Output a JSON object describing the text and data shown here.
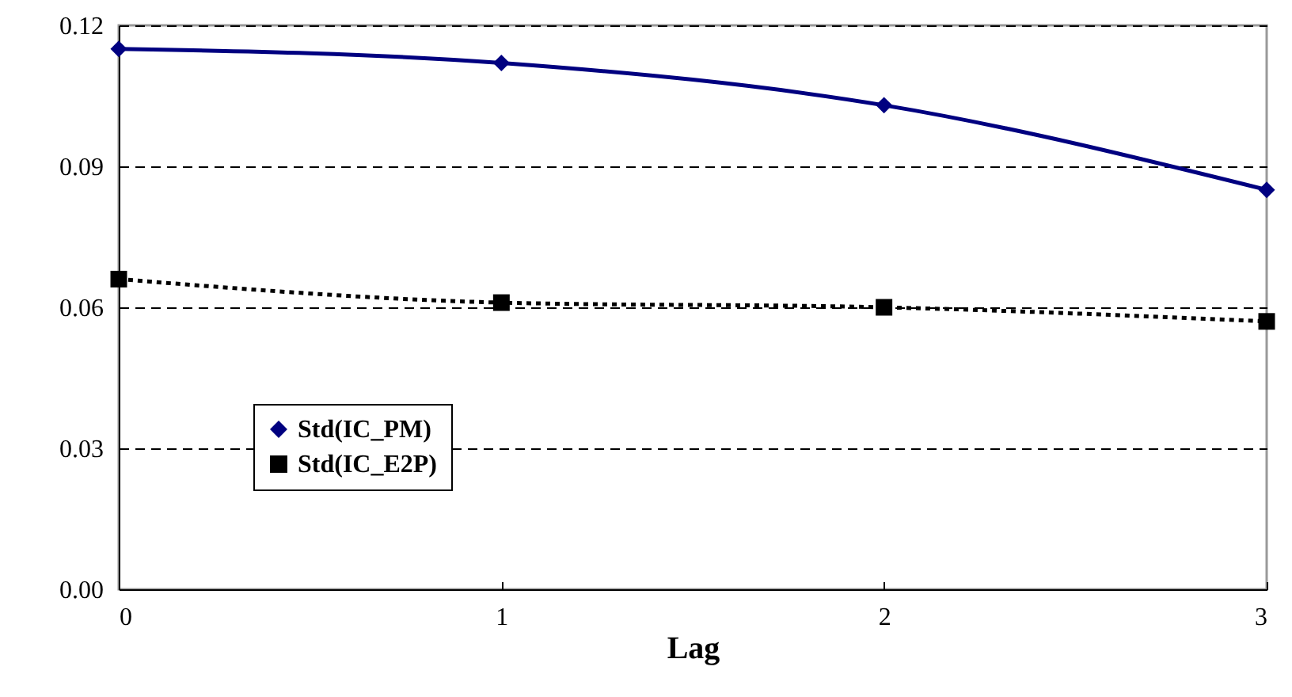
{
  "chart_data": {
    "type": "line",
    "xlabel": "Lag",
    "x": [
      0,
      1,
      2,
      3
    ],
    "series": [
      {
        "name": "Std(IC_PM)",
        "color": "#000080",
        "values": [
          0.115,
          0.112,
          0.103,
          0.085
        ],
        "marker": "diamond",
        "line_style": "solid"
      },
      {
        "name": "Std(IC_E2P)",
        "color": "#000000",
        "values": [
          0.066,
          0.061,
          0.06,
          0.057
        ],
        "marker": "square",
        "line_style": "dotted"
      }
    ],
    "xlim": [
      0,
      3
    ],
    "xticks": [
      0,
      1,
      2,
      3
    ],
    "ylim": [
      0,
      0.12
    ],
    "yticks": [
      {
        "value": 0,
        "label": "0.00"
      },
      0.03,
      0.06,
      0.09,
      0.12
    ],
    "grid": "y",
    "legend": "bottom left"
  }
}
